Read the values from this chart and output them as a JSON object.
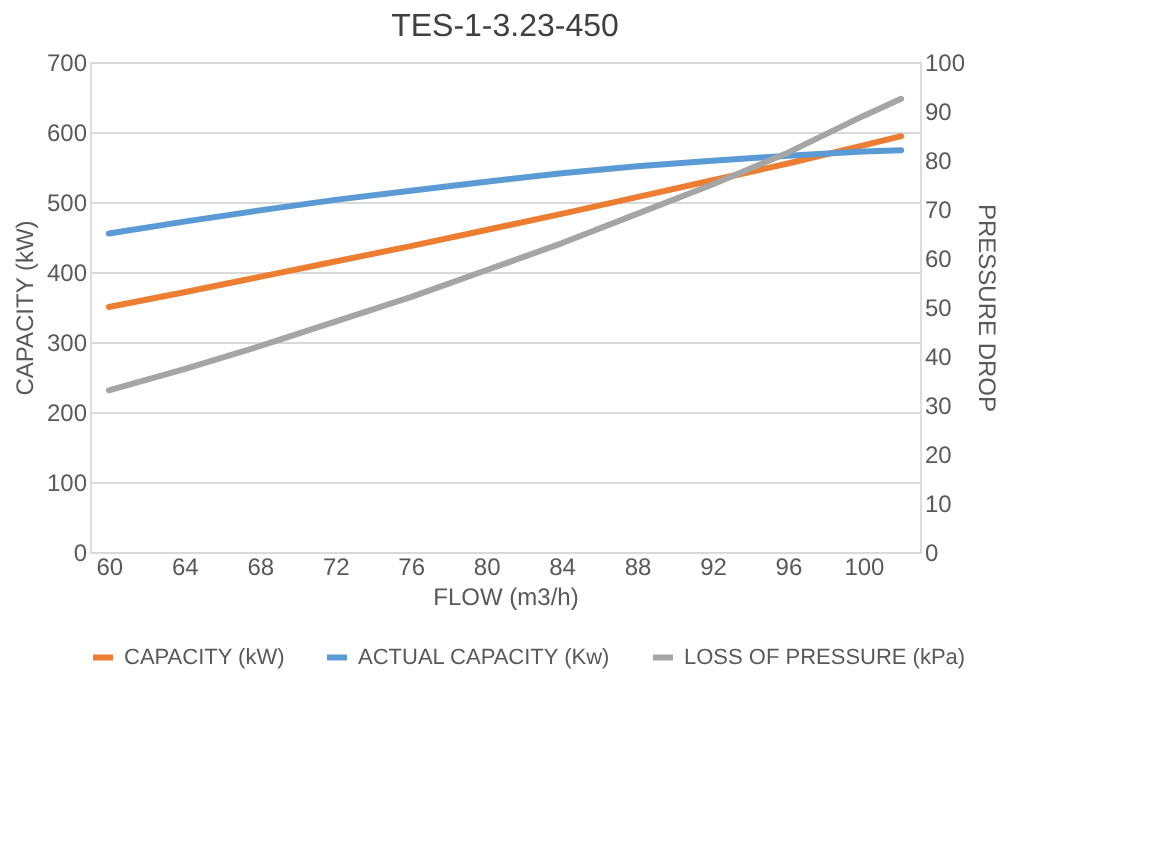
{
  "chart_data": {
    "type": "line",
    "title": "TES-1-3.23-450",
    "xlabel": "FLOW (m3/h)",
    "ylabel": "CAPACITY (kW)",
    "y2label": "PRESSURE DROP",
    "x": [
      60,
      64,
      68,
      72,
      76,
      80,
      84,
      88,
      92,
      96,
      100,
      102
    ],
    "xlim": [
      59,
      103
    ],
    "xticks": [
      60,
      64,
      68,
      72,
      76,
      80,
      84,
      88,
      92,
      96,
      100
    ],
    "ylim": [
      0,
      700
    ],
    "yticks": [
      0,
      100,
      200,
      300,
      400,
      500,
      600,
      700
    ],
    "y2lim": [
      0,
      100
    ],
    "y2ticks": [
      0,
      10,
      20,
      30,
      40,
      50,
      60,
      70,
      80,
      90,
      100
    ],
    "grid": "y",
    "legend": "bottom",
    "marker": "none",
    "line_style": "solid",
    "series": [
      {
        "name": "CAPACITY (kW)",
        "color": "#ed7d31",
        "values": [
          350,
          371,
          393,
          415,
          437,
          460,
          483,
          507,
          531,
          555,
          581,
          594
        ]
      },
      {
        "name": "ACTUAL CAPACITY (Kw)",
        "color": "#5b9bd5",
        "values": [
          455,
          472,
          488,
          503,
          516,
          529,
          541,
          551,
          559,
          566,
          572,
          574
        ]
      },
      {
        "name": "LOSS OF PRESSURE (kPa)",
        "color": "#a5a5a5",
        "axis": "y2",
        "values": [
          33,
          37.3,
          42,
          47,
          52,
          57.5,
          63,
          69,
          75,
          81.5,
          89,
          92.5
        ]
      }
    ]
  }
}
